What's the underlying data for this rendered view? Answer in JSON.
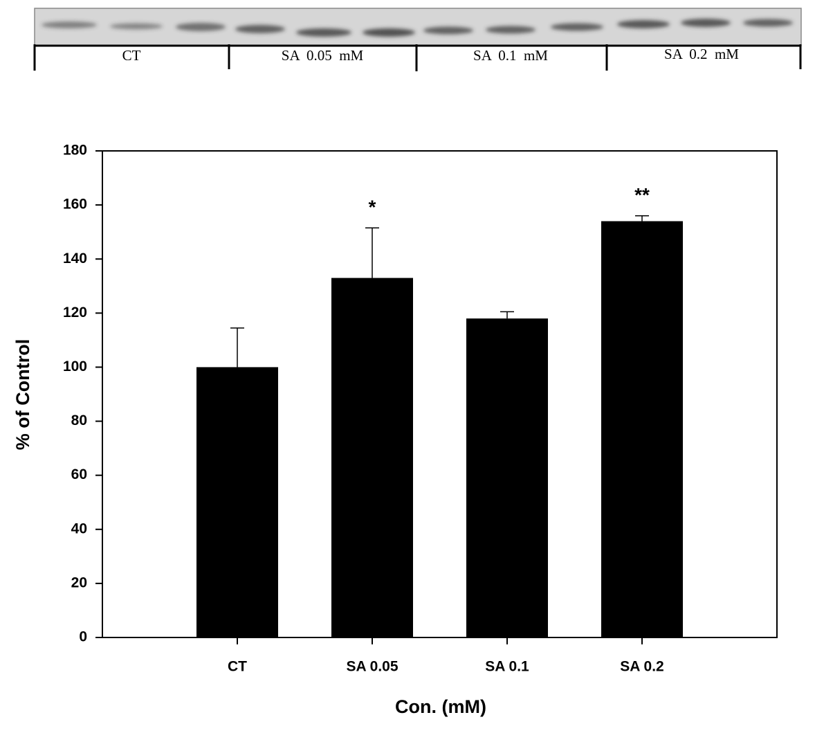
{
  "blot": {
    "lanes": [
      "CT",
      "SA  0.05  mM",
      "SA  0.1  mM",
      "SA  0.2  mM"
    ]
  },
  "chart_data": {
    "type": "bar",
    "categories": [
      "CT",
      "SA 0.05",
      "SA 0.1",
      "SA 0.2"
    ],
    "values": [
      100,
      133,
      118,
      154
    ],
    "errors": [
      14.5,
      18.5,
      2.5,
      2
    ],
    "significance": [
      null,
      "*",
      null,
      "**"
    ],
    "color": "#000000",
    "x_label": "Con. (mM)",
    "y_label": "% of Control",
    "ylim": [
      0,
      180
    ],
    "yticks": [
      0,
      20,
      40,
      60,
      80,
      100,
      120,
      140,
      160,
      180
    ],
    "grid": false
  }
}
